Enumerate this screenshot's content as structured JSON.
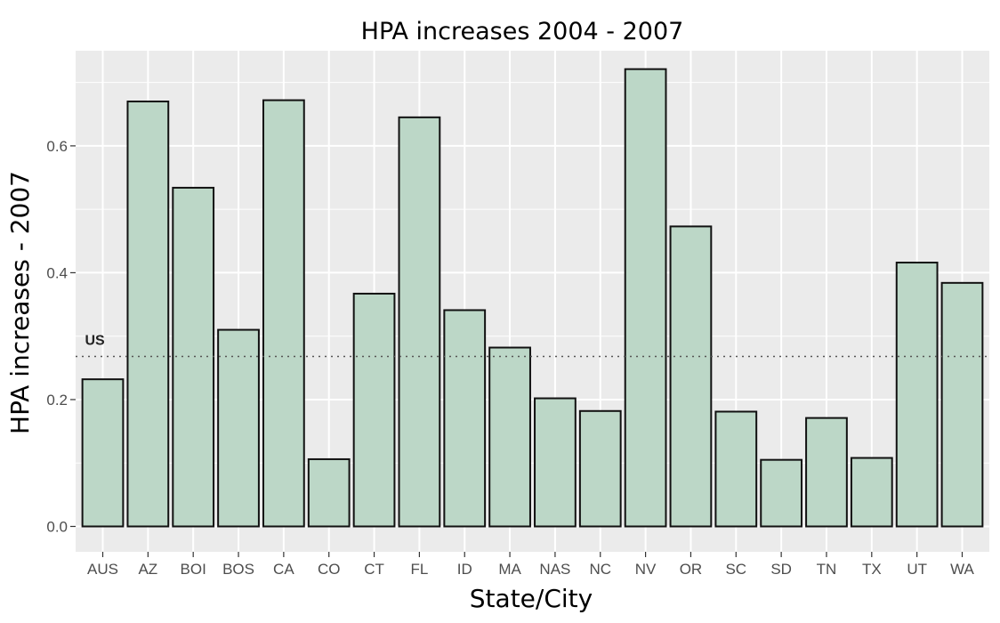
{
  "chart_data": {
    "type": "bar",
    "title": "HPA increases 2004 - 2007",
    "xlabel": "State/City",
    "ylabel": "HPA increases - 2007",
    "categories": [
      "AUS",
      "AZ",
      "BOI",
      "BOS",
      "CA",
      "CO",
      "CT",
      "FL",
      "ID",
      "MA",
      "NAS",
      "NC",
      "NV",
      "OR",
      "SC",
      "SD",
      "TN",
      "TX",
      "UT",
      "WA"
    ],
    "values": [
      0.232,
      0.67,
      0.534,
      0.31,
      0.672,
      0.106,
      0.367,
      0.645,
      0.341,
      0.282,
      0.202,
      0.182,
      0.721,
      0.473,
      0.181,
      0.105,
      0.171,
      0.108,
      0.416,
      0.384
    ],
    "ylim": [
      -0.04,
      0.75
    ],
    "yticks": [
      0.0,
      0.2,
      0.4,
      0.6
    ],
    "ytick_labels": [
      "0.0",
      "0.2",
      "0.4",
      "0.6"
    ],
    "reference_line": {
      "label": "US",
      "value": 0.268
    },
    "grid": true,
    "colors": {
      "panel_background": "#ebebeb",
      "grid": "#ffffff",
      "bar_fill": "#bcd7c7",
      "bar_stroke": "#111111",
      "reference_line": "#555555"
    }
  }
}
